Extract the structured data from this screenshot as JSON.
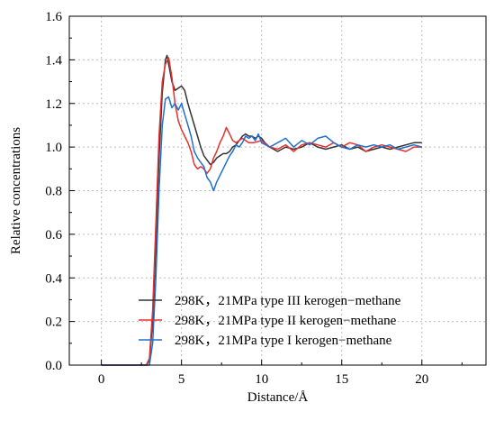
{
  "chart_data": {
    "type": "line",
    "title": "",
    "xlabel": "Distance/Å",
    "ylabel": "Relative concentrations",
    "xlim": [
      -2,
      24
    ],
    "ylim": [
      0.0,
      1.6
    ],
    "x_ticks": [
      0,
      5,
      10,
      15,
      20
    ],
    "y_ticks": [
      0.0,
      0.2,
      0.4,
      0.6,
      0.8,
      1.0,
      1.2,
      1.4,
      1.6
    ],
    "y_tick_labels": [
      "0.0",
      "0.2",
      "0.4",
      "0.6",
      "0.8",
      "1.0",
      "1.2",
      "1.4",
      "1.6"
    ],
    "x_tick_labels": [
      "0",
      "5",
      "10",
      "15",
      "20"
    ],
    "grid": true,
    "legend_position": "bottom-left",
    "series": [
      {
        "name": "298K，21MPa type III kerogen−methane",
        "color": "#333333",
        "points": [
          [
            0.0,
            0.0
          ],
          [
            2.8,
            0.0
          ],
          [
            3.0,
            0.02
          ],
          [
            3.2,
            0.2
          ],
          [
            3.4,
            0.55
          ],
          [
            3.6,
            0.95
          ],
          [
            3.8,
            1.25
          ],
          [
            4.0,
            1.4
          ],
          [
            4.1,
            1.42
          ],
          [
            4.2,
            1.38
          ],
          [
            4.4,
            1.3
          ],
          [
            4.6,
            1.26
          ],
          [
            4.8,
            1.27
          ],
          [
            5.0,
            1.28
          ],
          [
            5.2,
            1.26
          ],
          [
            5.4,
            1.2
          ],
          [
            5.6,
            1.15
          ],
          [
            5.8,
            1.1
          ],
          [
            6.0,
            1.05
          ],
          [
            6.2,
            1.0
          ],
          [
            6.4,
            0.96
          ],
          [
            6.6,
            0.94
          ],
          [
            6.8,
            0.92
          ],
          [
            7.0,
            0.93
          ],
          [
            7.2,
            0.95
          ],
          [
            7.4,
            0.96
          ],
          [
            7.6,
            0.97
          ],
          [
            7.8,
            0.97
          ],
          [
            8.0,
            0.98
          ],
          [
            8.2,
            1.0
          ],
          [
            8.4,
            1.01
          ],
          [
            8.6,
            1.03
          ],
          [
            8.8,
            1.05
          ],
          [
            9.0,
            1.06
          ],
          [
            9.2,
            1.05
          ],
          [
            9.4,
            1.05
          ],
          [
            9.6,
            1.04
          ],
          [
            9.8,
            1.05
          ],
          [
            10.0,
            1.04
          ],
          [
            10.2,
            1.02
          ],
          [
            10.5,
            1.0
          ],
          [
            11.0,
            0.98
          ],
          [
            11.5,
            1.0
          ],
          [
            12.0,
            0.99
          ],
          [
            12.5,
            1.0
          ],
          [
            13.0,
            1.02
          ],
          [
            13.5,
            1.0
          ],
          [
            14.0,
            0.99
          ],
          [
            14.5,
            1.0
          ],
          [
            15.0,
            1.01
          ],
          [
            15.5,
            0.99
          ],
          [
            16.0,
            1.0
          ],
          [
            16.5,
            0.98
          ],
          [
            17.0,
            0.99
          ],
          [
            17.5,
            1.0
          ],
          [
            18.0,
            0.99
          ],
          [
            18.5,
            1.0
          ],
          [
            19.0,
            1.01
          ],
          [
            19.5,
            1.02
          ],
          [
            20.0,
            1.02
          ]
        ]
      },
      {
        "name": "298K，21MPa type II kerogen−methane",
        "color": "#e8302c",
        "points": [
          [
            0.0,
            0.0
          ],
          [
            2.8,
            0.0
          ],
          [
            3.0,
            0.03
          ],
          [
            3.2,
            0.25
          ],
          [
            3.4,
            0.65
          ],
          [
            3.6,
            1.05
          ],
          [
            3.8,
            1.3
          ],
          [
            4.0,
            1.38
          ],
          [
            4.2,
            1.41
          ],
          [
            4.4,
            1.32
          ],
          [
            4.6,
            1.2
          ],
          [
            4.8,
            1.12
          ],
          [
            5.0,
            1.08
          ],
          [
            5.2,
            1.05
          ],
          [
            5.4,
            1.02
          ],
          [
            5.6,
            0.98
          ],
          [
            5.8,
            0.92
          ],
          [
            6.0,
            0.9
          ],
          [
            6.2,
            0.91
          ],
          [
            6.4,
            0.9
          ],
          [
            6.6,
            0.88
          ],
          [
            6.8,
            0.9
          ],
          [
            7.0,
            0.95
          ],
          [
            7.2,
            0.98
          ],
          [
            7.4,
            1.02
          ],
          [
            7.6,
            1.05
          ],
          [
            7.8,
            1.09
          ],
          [
            8.0,
            1.06
          ],
          [
            8.2,
            1.03
          ],
          [
            8.4,
            1.02
          ],
          [
            8.6,
            1.03
          ],
          [
            8.8,
            1.04
          ],
          [
            9.0,
            1.03
          ],
          [
            9.2,
            1.02
          ],
          [
            9.5,
            1.02
          ],
          [
            10.0,
            1.03
          ],
          [
            10.5,
            1.0
          ],
          [
            11.0,
            0.99
          ],
          [
            11.5,
            1.01
          ],
          [
            12.0,
            0.98
          ],
          [
            12.5,
            1.01
          ],
          [
            13.0,
            1.02
          ],
          [
            13.5,
            1.01
          ],
          [
            14.0,
            1.0
          ],
          [
            14.5,
            1.02
          ],
          [
            15.0,
            1.0
          ],
          [
            15.5,
            1.02
          ],
          [
            16.0,
            1.01
          ],
          [
            16.5,
            0.98
          ],
          [
            17.0,
            1.0
          ],
          [
            17.5,
            1.01
          ],
          [
            18.0,
            1.0
          ],
          [
            18.5,
            0.99
          ],
          [
            19.0,
            0.98
          ],
          [
            19.5,
            1.0
          ],
          [
            20.0,
            1.0
          ]
        ]
      },
      {
        "name": "298K，21MPa type I kerogen−methane",
        "color": "#1f70d0",
        "points": [
          [
            0.0,
            0.0
          ],
          [
            3.0,
            0.0
          ],
          [
            3.2,
            0.1
          ],
          [
            3.4,
            0.4
          ],
          [
            3.6,
            0.8
          ],
          [
            3.8,
            1.1
          ],
          [
            4.0,
            1.22
          ],
          [
            4.2,
            1.23
          ],
          [
            4.4,
            1.18
          ],
          [
            4.6,
            1.2
          ],
          [
            4.8,
            1.17
          ],
          [
            5.0,
            1.2
          ],
          [
            5.2,
            1.15
          ],
          [
            5.4,
            1.1
          ],
          [
            5.6,
            1.05
          ],
          [
            5.8,
            0.98
          ],
          [
            6.0,
            0.95
          ],
          [
            6.2,
            0.93
          ],
          [
            6.4,
            0.91
          ],
          [
            6.6,
            0.86
          ],
          [
            6.8,
            0.84
          ],
          [
            7.0,
            0.8
          ],
          [
            7.2,
            0.84
          ],
          [
            7.4,
            0.87
          ],
          [
            7.6,
            0.9
          ],
          [
            7.8,
            0.93
          ],
          [
            8.0,
            0.96
          ],
          [
            8.2,
            0.98
          ],
          [
            8.4,
            1.01
          ],
          [
            8.6,
            1.0
          ],
          [
            8.8,
            1.02
          ],
          [
            9.0,
            1.05
          ],
          [
            9.2,
            1.04
          ],
          [
            9.4,
            1.05
          ],
          [
            9.6,
            1.03
          ],
          [
            9.8,
            1.06
          ],
          [
            10.0,
            1.02
          ],
          [
            10.5,
            1.0
          ],
          [
            11.0,
            1.02
          ],
          [
            11.5,
            1.04
          ],
          [
            12.0,
            1.0
          ],
          [
            12.5,
            1.03
          ],
          [
            13.0,
            1.01
          ],
          [
            13.5,
            1.04
          ],
          [
            14.0,
            1.05
          ],
          [
            14.5,
            1.02
          ],
          [
            15.0,
            1.0
          ],
          [
            15.5,
            0.99
          ],
          [
            16.0,
            1.01
          ],
          [
            16.5,
            1.0
          ],
          [
            17.0,
            1.01
          ],
          [
            17.5,
            1.0
          ],
          [
            18.0,
            1.01
          ],
          [
            18.5,
            0.99
          ],
          [
            19.0,
            1.0
          ],
          [
            19.5,
            1.01
          ],
          [
            20.0,
            1.0
          ]
        ]
      }
    ]
  }
}
